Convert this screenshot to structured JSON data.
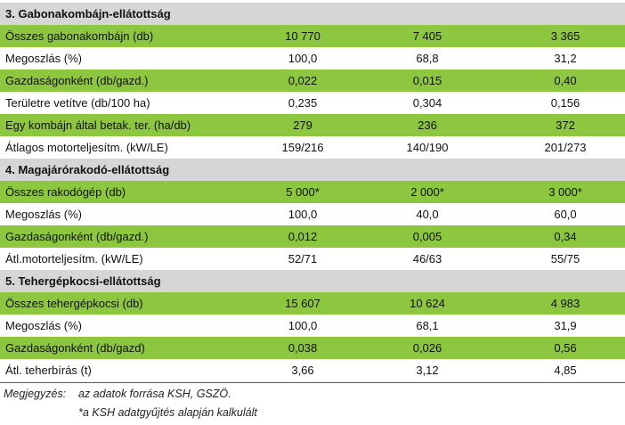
{
  "sections": [
    {
      "title": "3. Gabonakombájn-ellátottság",
      "rows": [
        {
          "label": "Összes gabonakombájn (db)",
          "v1": "10 770",
          "v2": "7 405",
          "v3": "3 365"
        },
        {
          "label": "Megoszlás (%)",
          "v1": "100,0",
          "v2": "68,8",
          "v3": "31,2"
        },
        {
          "label": "Gazdaságonként (db/gazd.)",
          "v1": "0,022",
          "v2": "0,015",
          "v3": "0,40"
        },
        {
          "label": "Területre vetítve (db/100 ha)",
          "v1": "0,235",
          "v2": "0,304",
          "v3": "0,156"
        },
        {
          "label": "Egy kombájn által betak. ter. (ha/db)",
          "v1": "279",
          "v2": "236",
          "v3": "372"
        },
        {
          "label": "Átlagos motorteljesítm. (kW/LE)",
          "v1": "159/216",
          "v2": "140/190",
          "v3": "201/273"
        }
      ]
    },
    {
      "title": "4. Magajárórakodó-ellátottság",
      "rows": [
        {
          "label": "Összes rakodógép (db)",
          "v1": "5 000*",
          "v2": "2 000*",
          "v3": "3 000*"
        },
        {
          "label": "Megoszlás (%)",
          "v1": "100,0",
          "v2": "40,0",
          "v3": "60,0"
        },
        {
          "label": "Gazdaságonként (db/gazd.)",
          "v1": "0,012",
          "v2": "0,005",
          "v3": "0,34"
        },
        {
          "label": "Átl.motorteljesítm. (kW/LE)",
          "v1": "52/71",
          "v2": "46/63",
          "v3": "55/75"
        }
      ]
    },
    {
      "title": "5. Tehergépkocsi-ellátottság",
      "rows": [
        {
          "label": "Összes tehergépkocsi (db)",
          "v1": "15 607",
          "v2": "10 624",
          "v3": "4 983"
        },
        {
          "label": "Megoszlás (%)",
          "v1": "100,0",
          "v2": "68,1",
          "v3": "31,9"
        },
        {
          "label": "Gazdaságonként (db/gazd)",
          "v1": "0,038",
          "v2": "0,026",
          "v3": "0,56"
        },
        {
          "label": "Átl. teherbírás (t)",
          "v1": "3,66",
          "v2": "3,12",
          "v3": "4,85"
        }
      ]
    }
  ],
  "note": {
    "label": "Megjegyzés:",
    "line1": "az adatok forrása KSH, GSZÖ.",
    "line2": "*a KSH adatgyűjtés alapján kalkulált"
  },
  "colors": {
    "green": "#8dc63f",
    "gray": "#d6d6d6",
    "white": "#ffffff"
  }
}
